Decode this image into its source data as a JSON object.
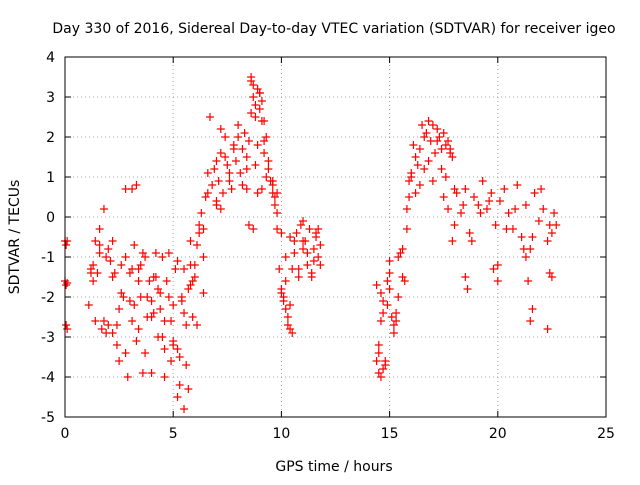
{
  "chart_data": {
    "type": "scatter",
    "title": "Day 330 of 2016, Sidereal Day-to-day VTEC variation (SDTVAR) for receiver igeo",
    "xlabel": "GPS time / hours",
    "ylabel": "SDTVAR / TECUs",
    "xlim": [
      0,
      25
    ],
    "ylim": [
      -5,
      4
    ],
    "xticks": [
      0,
      5,
      10,
      15,
      20,
      25
    ],
    "yticks": [
      -5,
      -4,
      -3,
      -2,
      -1,
      0,
      1,
      2,
      3,
      4
    ],
    "grid": true,
    "marker": "plus",
    "color": "#ff0000",
    "series": [
      {
        "name": "SDTVAR",
        "x": [
          0.0,
          0.05,
          0.1,
          0.0,
          0.05,
          0.1,
          0.05,
          0.1,
          1.1,
          1.2,
          1.3,
          1.4,
          1.5,
          1.6,
          1.7,
          1.8,
          1.9,
          2.0,
          2.1,
          2.2,
          2.3,
          2.4,
          2.5,
          2.6,
          2.7,
          2.8,
          2.9,
          3.0,
          3.1,
          3.2,
          3.3,
          3.4,
          3.5,
          3.6,
          3.7,
          3.8,
          3.9,
          4.0,
          4.1,
          4.2,
          4.3,
          4.4,
          4.5,
          4.6,
          4.7,
          4.8,
          4.9,
          5.0,
          5.1,
          5.2,
          5.3,
          5.4,
          5.5,
          5.6,
          5.7,
          5.8,
          5.9,
          6.0,
          6.1,
          6.2,
          6.3,
          6.4,
          6.5,
          6.6,
          6.7,
          6.8,
          6.9,
          7.0,
          1.2,
          1.4,
          1.6,
          1.8,
          2.0,
          2.2,
          2.4,
          2.6,
          2.8,
          3.0,
          3.2,
          3.4,
          3.6,
          3.8,
          4.0,
          4.2,
          4.4,
          4.6,
          4.8,
          5.0,
          5.2,
          5.4,
          5.6,
          5.8,
          6.0,
          6.2,
          6.4,
          6.6,
          1.3,
          1.6,
          1.9,
          2.2,
          2.5,
          2.8,
          3.1,
          3.4,
          3.7,
          4.0,
          4.3,
          4.6,
          4.9,
          5.2,
          5.5,
          5.8,
          6.1,
          6.4,
          3.1,
          3.3,
          3.5,
          4.1,
          4.5,
          5.0,
          5.3,
          5.5,
          5.7,
          5.9,
          7.0,
          7.1,
          7.2,
          7.3,
          7.4,
          7.5,
          7.6,
          7.7,
          7.8,
          7.9,
          8.0,
          8.1,
          8.2,
          8.3,
          8.4,
          8.5,
          8.6,
          8.7,
          8.8,
          8.9,
          9.0,
          9.1,
          9.2,
          9.3,
          9.4,
          9.5,
          7.2,
          7.4,
          7.6,
          7.8,
          8.0,
          8.2,
          8.4,
          8.6,
          8.8,
          9.0,
          9.2,
          9.4,
          9.6,
          8.6,
          8.7,
          8.8,
          8.9,
          9.0,
          9.1,
          9.2,
          8.9,
          9.1,
          9.3,
          7.0,
          7.2,
          8.4,
          8.5,
          8.7,
          9.6,
          9.7,
          9.8,
          9.6,
          9.7,
          9.8,
          9.9,
          10.0,
          10.1,
          10.2,
          10.3,
          10.4,
          10.5,
          10.6,
          10.7,
          10.8,
          10.9,
          11.0,
          11.1,
          11.2,
          11.3,
          11.4,
          11.5,
          11.6,
          11.7,
          11.8,
          9.8,
          10.0,
          10.2,
          10.4,
          10.6,
          10.8,
          11.0,
          11.2,
          11.4,
          11.6,
          11.8,
          10.0,
          10.1,
          10.2,
          10.3,
          10.4,
          10.5,
          11.0,
          11.5,
          11.7,
          14.4,
          14.5,
          14.6,
          14.7,
          14.8,
          14.9,
          15.0,
          15.1,
          15.2,
          15.3,
          15.4,
          15.5,
          15.6,
          15.7,
          15.8,
          15.9,
          14.4,
          14.5,
          14.6,
          14.7,
          14.8,
          14.9,
          15.0,
          15.2,
          15.4,
          15.6,
          14.5,
          14.6,
          14.7,
          15.0,
          15.3,
          15.8,
          15.9,
          16.0,
          16.1,
          16.2,
          16.3,
          16.4,
          16.5,
          16.6,
          16.7,
          16.8,
          16.9,
          17.0,
          17.1,
          17.2,
          17.3,
          17.4,
          17.5,
          17.6,
          17.7,
          17.8,
          17.9,
          18.0,
          16.0,
          16.2,
          16.4,
          16.6,
          16.8,
          17.0,
          17.2,
          17.4,
          17.6,
          17.8,
          17.5,
          17.7,
          17.9,
          18.1,
          18.3,
          18.5,
          18.7,
          18.9,
          19.1,
          19.3,
          19.5,
          19.7,
          19.9,
          20.1,
          20.3,
          20.5,
          20.7,
          20.9,
          21.1,
          21.3,
          21.5,
          21.7,
          21.9,
          22.1,
          22.3,
          22.5,
          22.7,
          18.0,
          18.4,
          18.8,
          19.2,
          19.6,
          20.0,
          20.4,
          20.8,
          21.2,
          21.6,
          22.0,
          22.4,
          22.6,
          18.5,
          18.6,
          19.8,
          20.0,
          21.3,
          21.4,
          21.5,
          21.6,
          22.3,
          22.4,
          22.5
        ],
        "y": [
          -0.6,
          -0.7,
          -0.6,
          -1.6,
          -1.7,
          -1.65,
          -2.7,
          -2.8,
          -2.2,
          -1.4,
          -1.2,
          -0.6,
          -1.4,
          -0.3,
          -2.8,
          -2.6,
          -1.0,
          -2.7,
          -1.1,
          -2.9,
          -1.4,
          -3.2,
          -3.6,
          -1.9,
          -2.0,
          0.7,
          -4.0,
          -1.4,
          -2.6,
          -2.2,
          -3.1,
          -1.3,
          -2.0,
          -3.9,
          -1.0,
          -2.0,
          -1.6,
          -3.9,
          -2.4,
          -0.9,
          -3.0,
          -1.9,
          -1.0,
          -3.3,
          -1.6,
          -0.9,
          -3.6,
          -2.2,
          -1.3,
          -4.5,
          -4.2,
          -2.1,
          -1.3,
          -2.7,
          -1.8,
          -0.6,
          -1.6,
          -1.2,
          -0.7,
          -0.4,
          0.1,
          -0.3,
          0.5,
          1.1,
          2.5,
          0.8,
          1.2,
          1.4,
          -1.3,
          -2.6,
          -0.7,
          0.2,
          -0.8,
          -1.5,
          -2.7,
          -1.2,
          -3.4,
          -2.1,
          -0.7,
          -1.6,
          -0.9,
          -2.5,
          -2.1,
          -1.5,
          -2.3,
          -2.6,
          -2.0,
          -3.2,
          -1.1,
          -2.0,
          -3.7,
          -1.7,
          -1.5,
          -0.2,
          -1.0,
          0.6,
          -1.6,
          -0.9,
          -2.9,
          -0.6,
          -2.3,
          -1.0,
          -1.3,
          -2.8,
          -3.4,
          -2.5,
          -1.8,
          -4.0,
          -2.6,
          -3.3,
          -2.4,
          -1.2,
          -2.7,
          -1.9,
          0.7,
          0.8,
          -1.2,
          -1.5,
          -3.0,
          -3.1,
          -3.5,
          -4.8,
          -4.3,
          -2.5,
          0.4,
          0.9,
          1.6,
          0.6,
          1.5,
          1.3,
          0.9,
          0.7,
          1.8,
          1.4,
          2.0,
          1.1,
          1.7,
          2.1,
          1.2,
          1.9,
          3.5,
          3.3,
          2.5,
          1.8,
          3.1,
          2.4,
          1.6,
          2.0,
          1.2,
          0.9,
          2.2,
          2.0,
          1.1,
          1.7,
          2.3,
          0.8,
          1.5,
          2.6,
          1.3,
          2.7,
          1.9,
          1.4,
          0.9,
          3.4,
          3.0,
          2.8,
          3.2,
          3.1,
          2.9,
          2.4,
          0.6,
          0.7,
          1.0,
          0.3,
          0.2,
          0.7,
          -0.2,
          -0.3,
          0.8,
          0.5,
          0.6,
          0.6,
          0.3,
          -0.3,
          -1.3,
          -1.9,
          -2.0,
          -1.0,
          -2.7,
          -0.5,
          -1.3,
          -0.9,
          -0.4,
          -1.5,
          -0.2,
          -0.8,
          -0.6,
          -1.2,
          -0.3,
          -1.4,
          -0.8,
          -0.5,
          -1.0,
          -0.7,
          0.1,
          -0.4,
          -1.6,
          -2.2,
          -0.6,
          -1.3,
          -0.1,
          -0.9,
          -1.5,
          -0.4,
          -1.2,
          -1.8,
          -2.1,
          -2.3,
          -2.5,
          -2.8,
          -2.9,
          -0.6,
          -1.1,
          -0.3,
          -1.7,
          -3.2,
          -1.9,
          -2.4,
          -3.6,
          -2.2,
          -1.8,
          -2.5,
          -2.9,
          -2.6,
          -1.0,
          -0.9,
          -1.5,
          -1.6,
          0.2,
          0.5,
          -3.6,
          -3.4,
          -2.6,
          -2.1,
          -3.7,
          -1.6,
          -1.1,
          -2.7,
          -2.0,
          -0.8,
          -3.9,
          -4.0,
          -3.8,
          -1.4,
          -2.4,
          -0.3,
          0.9,
          1.0,
          1.8,
          0.6,
          1.3,
          1.7,
          2.3,
          1.2,
          2.1,
          2.4,
          1.9,
          2.3,
          1.6,
          2.2,
          2.0,
          1.7,
          2.1,
          1.8,
          1.9,
          1.6,
          1.5,
          0.7,
          1.1,
          1.5,
          0.8,
          2.0,
          1.4,
          0.9,
          1.9,
          1.2,
          1.0,
          1.7,
          0.5,
          0.2,
          -0.6,
          0.6,
          0.1,
          0.7,
          -0.4,
          0.5,
          0.3,
          0.9,
          0.2,
          0.6,
          -0.2,
          0.4,
          0.7,
          0.1,
          -0.3,
          0.8,
          -0.5,
          0.3,
          -0.8,
          0.6,
          -0.1,
          0.2,
          -0.6,
          -0.4,
          -0.2,
          -0.2,
          0.3,
          -0.6,
          0.1,
          0.4,
          -1.2,
          -0.3,
          0.2,
          -0.8,
          -0.5,
          0.7,
          -0.2,
          0.1,
          -1.5,
          -1.8,
          -1.3,
          -1.6,
          -1.0,
          -1.6,
          -2.6,
          -2.3,
          -2.8,
          -1.4,
          -1.5
        ]
      }
    ]
  }
}
